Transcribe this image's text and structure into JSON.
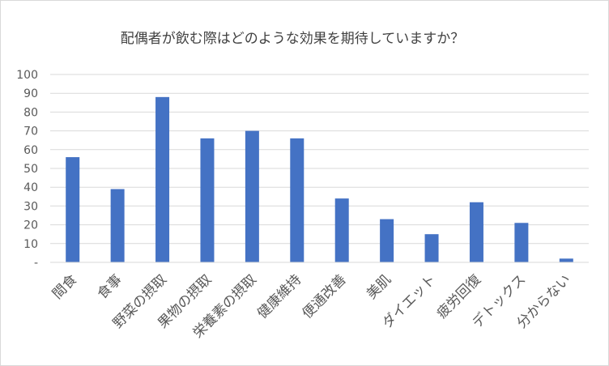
{
  "chart_data": {
    "type": "bar",
    "title": "配偶者が飲む際はどのような効果を期待していますか？",
    "categories": [
      "間食",
      "食事",
      "野菜の摂取",
      "果物の摂取",
      "栄養素の摂取",
      "健康維持",
      "便通改善",
      "美肌",
      "ダイエット",
      "疲労回復",
      "デトックス",
      "分からない"
    ],
    "values": [
      56,
      39,
      88,
      66,
      70,
      66,
      34,
      23,
      15,
      32,
      21,
      2
    ],
    "ylim": [
      0,
      100
    ],
    "yticks": [
      "-",
      "10",
      "20",
      "30",
      "40",
      "50",
      "60",
      "70",
      "80",
      "90",
      "100"
    ],
    "grid": true,
    "legend": "none",
    "bar_color": "#4472c4",
    "grid_color": "#d9d9d9"
  }
}
